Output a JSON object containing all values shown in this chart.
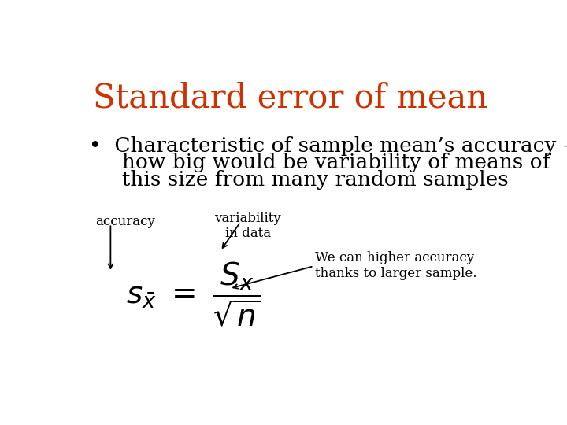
{
  "title": "Standard error of mean",
  "title_color": "#CC3300",
  "title_fontsize": 30,
  "bullet_line1": "•  Characteristic of sample mean’s accuracy –",
  "bullet_line2": "     how big would be variability of means of",
  "bullet_line3": "     this size from many random samples",
  "bullet_fontsize": 19,
  "label_accuracy": "accuracy",
  "label_variability": "variability\nin data",
  "label_we_can": "We can higher accuracy\nthanks to larger sample.",
  "annotation_fontsize": 12,
  "background_color": "#ffffff"
}
